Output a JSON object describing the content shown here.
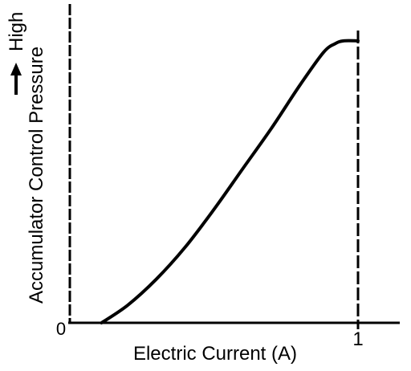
{
  "chart_data": {
    "type": "line",
    "title": "",
    "xlabel": "Electric Current (A)",
    "ylabel_line1": "Accumulator Control Pressure",
    "ylabel_line2": "High",
    "origin_label": "0",
    "x_tick_labels": [
      "1"
    ],
    "xlim": [
      0,
      1.15
    ],
    "ylim": [
      0,
      1.0
    ],
    "grid": false,
    "legend": "none",
    "reference_line_x": 1.0,
    "series": [
      {
        "x": [
          0.11,
          0.2,
          0.3,
          0.4,
          0.5,
          0.6,
          0.7,
          0.8,
          0.88,
          0.92,
          0.95,
          1.0
        ],
        "y": [
          0.0,
          0.06,
          0.15,
          0.26,
          0.39,
          0.53,
          0.67,
          0.82,
          0.93,
          0.96,
          0.97,
          0.97
        ]
      }
    ]
  }
}
